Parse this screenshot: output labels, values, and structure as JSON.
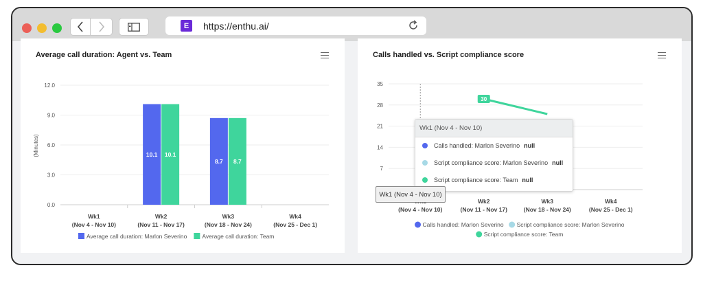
{
  "browser": {
    "url": "https://enthu.ai/",
    "favicon_letter": "E",
    "traffic_lights": [
      "#ec5f57",
      "#f3bd2f",
      "#2ac940"
    ]
  },
  "colors": {
    "agent": "#5368ee",
    "team": "#3fd59c",
    "compliance_agent": "#a7d9e6"
  },
  "left_chart": {
    "title": "Average call duration: Agent vs. Team",
    "legend": [
      "Average call duration: Marlon Severino",
      "Average call duration: Team"
    ]
  },
  "right_chart": {
    "title": "Calls handled vs. Script compliance score",
    "legend": [
      "Calls handled: Marlon Severino",
      "Script compliance score: Marlon Severino",
      "Script compliance score: Team"
    ],
    "tooltip": {
      "header": "Wk1 (Nov 4 - Nov 10)",
      "rows": [
        {
          "label": "Calls handled: Marlon Severino",
          "value": "null"
        },
        {
          "label": "Script compliance score: Marlon Severino",
          "value": "null"
        },
        {
          "label": "Script compliance score: Team",
          "value": "null"
        }
      ]
    },
    "x_tooltip": "Wk1 (Nov 4 - Nov 10)"
  },
  "chart_data": [
    {
      "type": "bar",
      "title": "Average call duration: Agent vs. Team",
      "ylabel": "(Minutes)",
      "ylim": [
        0,
        12
      ],
      "yticks": [
        "12.0",
        "9.0",
        "6.0",
        "3.0",
        "0.0"
      ],
      "categories": [
        "Wk1\n(Nov 4 - Nov 10)",
        "Wk2\n(Nov 11 - Nov 17)",
        "Wk3\n(Nov 18 - Nov 24)",
        "Wk4\n(Nov 25 - Dec 1)"
      ],
      "series": [
        {
          "name": "Average call duration: Marlon Severino",
          "values": [
            null,
            10.1,
            8.7,
            null
          ],
          "labels": [
            "",
            "10.1",
            "8.7",
            ""
          ]
        },
        {
          "name": "Average call duration: Team",
          "values": [
            null,
            10.1,
            8.7,
            null
          ],
          "labels": [
            "",
            "10.1",
            "8.7",
            ""
          ]
        }
      ]
    },
    {
      "type": "line",
      "title": "Calls handled vs. Script compliance score",
      "ylim": [
        0,
        35
      ],
      "yticks": [
        "35",
        "28",
        "21",
        "14",
        "7",
        "0"
      ],
      "categories": [
        "Wk1\n(Nov 4 - Nov 10)",
        "Wk2\n(Nov 11 - Nov 17)",
        "Wk3\n(Nov 18 - Nov 24)",
        "Wk4\n(Nov 25 - Dec 1)"
      ],
      "series": [
        {
          "name": "Calls handled: Marlon Severino",
          "values": [
            null,
            null,
            null,
            null
          ]
        },
        {
          "name": "Script compliance score: Marlon Severino",
          "values": [
            null,
            null,
            null,
            null
          ]
        },
        {
          "name": "Script compliance score: Team",
          "values": [
            null,
            30,
            25,
            null
          ]
        }
      ],
      "annotations": [
        {
          "x": "Wk2",
          "text": "30"
        }
      ]
    }
  ]
}
